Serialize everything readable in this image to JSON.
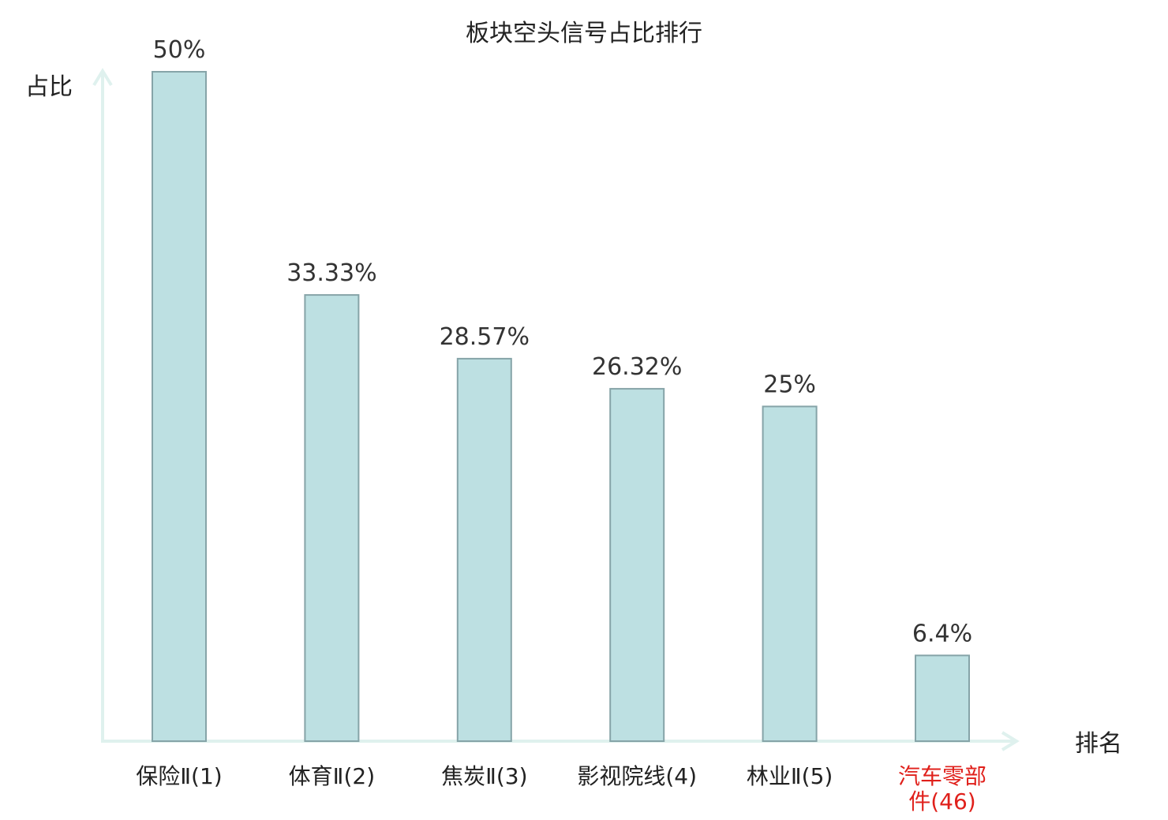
{
  "chart_data": {
    "type": "bar",
    "title": "板块空头信号占比排行",
    "ylabel": "占比",
    "xlabel": "排名",
    "ylim": [
      0,
      50
    ],
    "grid": false,
    "categories": [
      "保险Ⅱ(1)",
      "体育Ⅱ(2)",
      "焦炭Ⅱ(3)",
      "影视院线(4)",
      "林业Ⅱ(5)",
      "汽车零部件(46)"
    ],
    "category_lines": [
      [
        "保险Ⅱ(1)"
      ],
      [
        "体育Ⅱ(2)"
      ],
      [
        "焦炭Ⅱ(3)"
      ],
      [
        "影视院线(4)"
      ],
      [
        "林业Ⅱ(5)"
      ],
      [
        "汽车零部",
        "件(46)"
      ]
    ],
    "values": [
      50,
      33.33,
      28.57,
      26.32,
      25,
      6.4
    ],
    "value_labels": [
      "50%",
      "33.33%",
      "28.57%",
      "26.32%",
      "25%",
      "6.4%"
    ],
    "highlight_index": 5
  },
  "colors": {
    "bar_fill": "#bde0e2",
    "bar_stroke": "#86a4a8",
    "axis": "#dff1ee",
    "text": "#222222",
    "value_text": "#333333",
    "highlight_text": "#e0201b"
  }
}
